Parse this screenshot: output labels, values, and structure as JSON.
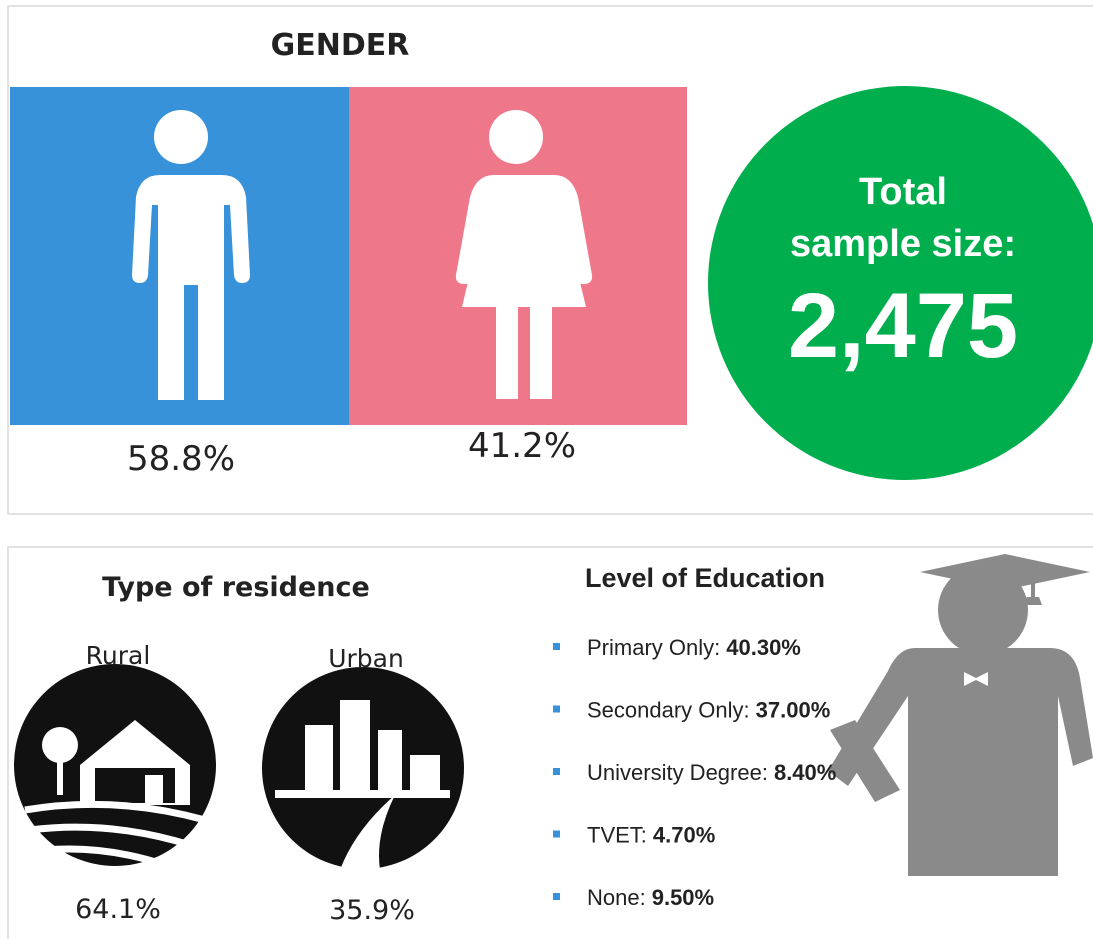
{
  "gender": {
    "title": "GENDER",
    "male": "58.8%",
    "female": "41.2%"
  },
  "sample": {
    "label_line1": "Total",
    "label_line2": "sample size:",
    "value": "2,475"
  },
  "residence": {
    "title": "Type of residence",
    "items": [
      {
        "label": "Rural",
        "value": "64.1%"
      },
      {
        "label": "Urban",
        "value": "35.9%"
      }
    ]
  },
  "education": {
    "title": "Level of Education",
    "items": [
      {
        "label": "Primary Only:",
        "value": "40.30%"
      },
      {
        "label": "Secondary Only:",
        "value": "37.00%"
      },
      {
        "label": "University Degree:",
        "value": "8.40%"
      },
      {
        "label": "TVET:",
        "value": "4.70%"
      },
      {
        "label": "None:",
        "value": "9.50%"
      }
    ]
  }
}
